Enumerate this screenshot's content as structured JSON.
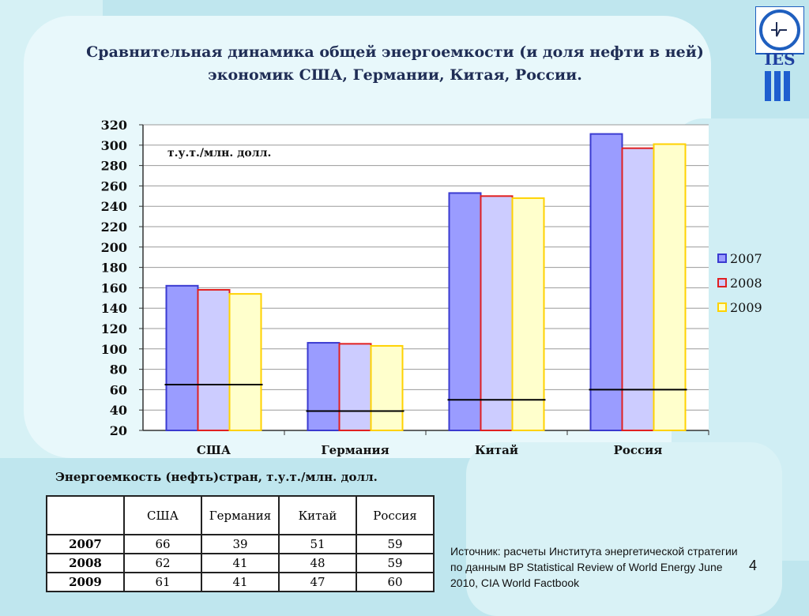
{
  "title": {
    "line1": "Сравнительная динамика общей энергоемкости (и доля нефти в ней)",
    "line2": "экономик США, Германии, Китая, России."
  },
  "colors": {
    "bar_2007": "#9a9cff",
    "bar_2007_border": "#3a3ad0",
    "bar_2008": "#ccccff",
    "bar_2008_border": "#e02020",
    "bar_2009": "#ffffcc",
    "bar_2009_border": "#ffd200",
    "oil_line": "#000000"
  },
  "chart_data": {
    "type": "bar",
    "categories": [
      "США",
      "Германия",
      "Китай",
      "Россия"
    ],
    "series": [
      {
        "name": "2007",
        "values": [
          162,
          106,
          253,
          311
        ]
      },
      {
        "name": "2008",
        "values": [
          158,
          105,
          250,
          297
        ]
      },
      {
        "name": "2009",
        "values": [
          154,
          103,
          248,
          301
        ]
      }
    ],
    "oil_share_levels": [
      65,
      39,
      50,
      60
    ],
    "unit_label": "т.у.т./млн. долл.",
    "ylim": [
      20,
      320
    ],
    "yticks": [
      20,
      40,
      60,
      80,
      100,
      120,
      140,
      160,
      180,
      200,
      220,
      240,
      260,
      280,
      300,
      320
    ],
    "grid": true,
    "legend_position": "right"
  },
  "table": {
    "caption": "Энергоемкость (нефть)стран, т.у.т./млн. долл.",
    "headers": [
      "",
      "США",
      "Германия",
      "Китай",
      "Россия"
    ],
    "rows": [
      {
        "label": "2007",
        "values": [
          "66",
          "39",
          "51",
          "59"
        ]
      },
      {
        "label": "2008",
        "values": [
          "62",
          "41",
          "48",
          "59"
        ]
      },
      {
        "label": "2009",
        "values": [
          "61",
          "41",
          "47",
          "60"
        ]
      }
    ]
  },
  "source_text": "Источник: расчеты Института энергетической стратегии по данным BP Statistical Review of World Energy June 2010, CIA World Factbook",
  "page_number": "4",
  "logo_text": "IES"
}
